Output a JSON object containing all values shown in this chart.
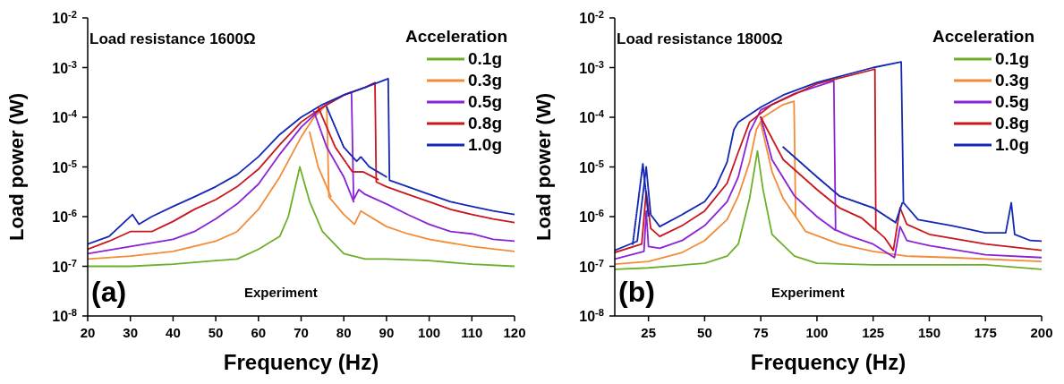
{
  "chart_data": [
    {
      "type": "line",
      "xlabel": "Frequency (Hz)",
      "ylabel": "Load power (W)",
      "legend_title": "Acceleration",
      "legend": "top right",
      "marker": "none",
      "log": "y",
      "xlim": [
        20,
        120
      ],
      "xticks": [
        20,
        30,
        40,
        50,
        60,
        70,
        80,
        90,
        100,
        110,
        120
      ],
      "ylim": [
        1e-08,
        0.01
      ],
      "yticks": [
        {
          "value": 1e-08,
          "label": "10$^{-8}$"
        },
        {
          "value": 1e-07,
          "label": "10$^{-7}$"
        },
        {
          "value": 1e-06,
          "label": "10$^{-6}$"
        },
        {
          "value": 1e-05,
          "label": "10$^{-5}$"
        },
        {
          "value": 0.0001,
          "label": "10$^{-4}$"
        },
        {
          "value": 0.001,
          "label": "10$^{-3}$"
        },
        {
          "value": 0.01,
          "label": "10$^{-2}$"
        }
      ],
      "annotations": [
        "Load resistance 1600Ω",
        "Experiment",
        "(a)"
      ],
      "series": [
        {
          "name": "0.1g",
          "color": "#6fae2b",
          "x": [
            20,
            30,
            40,
            50,
            55,
            60,
            65,
            67,
            69.7,
            72,
            75,
            80,
            85,
            90,
            100,
            110,
            120
          ],
          "values": [
            1e-07,
            1e-07,
            1.1e-07,
            1.3e-07,
            1.4e-07,
            2.2e-07,
            4e-07,
            1e-06,
            1e-05,
            2e-06,
            5e-07,
            1.8e-07,
            1.4e-07,
            1.4e-07,
            1.3e-07,
            1.1e-07,
            1e-07
          ]
        },
        {
          "name": "0.3g",
          "color": "#f28c38",
          "x": [
            20,
            30,
            40,
            50,
            55,
            60,
            65,
            70,
            73,
            76,
            76.5,
            80,
            82.5,
            84,
            90,
            95,
            100,
            110,
            120
          ],
          "values": [
            1.4e-07,
            1.6e-07,
            2e-07,
            3.2e-07,
            5e-07,
            1.4e-06,
            6.3e-06,
            4e-05,
            0.0001,
            0.00018,
            2.5e-06,
            1.1e-06,
            7e-07,
            1.3e-06,
            6.3e-07,
            4.5e-07,
            3.5e-07,
            2.5e-07,
            2e-07
          ]
        },
        {
          "name": "0.5g",
          "color": "#8a23d6",
          "x": [
            20,
            30,
            40,
            45,
            50,
            55,
            60,
            65,
            70,
            75,
            80,
            81.8,
            82.3,
            83.5,
            85,
            90,
            95,
            100,
            105,
            110,
            115,
            120
          ],
          "values": [
            1.8e-07,
            2.5e-07,
            3.5e-07,
            5e-07,
            9e-07,
            1.8e-06,
            4.5e-06,
            1.8e-05,
            6.3e-05,
            0.00016,
            0.00028,
            0.00032,
            2.2e-06,
            3.5e-06,
            2.8e-06,
            1.8e-06,
            1.1e-06,
            7e-07,
            5e-07,
            4.5e-07,
            3.5e-07,
            3.2e-07
          ]
        },
        {
          "name": "0.8g",
          "color": "#c8161d",
          "x": [
            20,
            25,
            30,
            35,
            40,
            45,
            50,
            55,
            60,
            65,
            70,
            75,
            80,
            85,
            87.3,
            87.6,
            90,
            95,
            100,
            105,
            110,
            115,
            120
          ],
          "values": [
            2.2e-07,
            3.2e-07,
            5e-07,
            5e-07,
            8e-07,
            1.4e-06,
            2.2e-06,
            4e-06,
            9e-06,
            2.8e-05,
            8e-05,
            0.00016,
            0.00028,
            0.0004,
            0.0005,
            5e-06,
            4e-06,
            2.8e-06,
            2e-06,
            1.4e-06,
            1.1e-06,
            9e-07,
            7.6e-07
          ]
        },
        {
          "name": "1.0g",
          "color": "#1428b4",
          "x": [
            20,
            25,
            30.5,
            32,
            35,
            40,
            45,
            50,
            55,
            60,
            65,
            70,
            75,
            80,
            85,
            90.4,
            90.7,
            95,
            100,
            105,
            110,
            115,
            120
          ],
          "values": [
            2.8e-07,
            4e-07,
            1.1e-06,
            7e-07,
            1e-06,
            1.6e-06,
            2.5e-06,
            4e-06,
            7e-06,
            1.6e-05,
            4.5e-05,
            0.0001,
            0.00018,
            0.00028,
            0.0004,
            0.0006,
            5.4e-06,
            4e-06,
            2.8e-06,
            2e-06,
            1.6e-06,
            1.3e-06,
            1.1e-06
          ]
        },
        {
          "color": "#f28c38",
          "line_style": "dotted",
          "x": [
            72,
            74,
            77
          ],
          "values": [
            5e-05,
            1e-05,
            2.5e-06
          ]
        },
        {
          "color": "#8a23d6",
          "line_style": "dotted",
          "x": [
            73,
            76,
            80,
            82.3
          ],
          "values": [
            0.00013,
            2.5e-05,
            6.3e-06,
            2e-06
          ]
        },
        {
          "color": "#c8161d",
          "line_style": "dotted",
          "x": [
            74,
            78,
            82,
            84.5,
            88
          ],
          "values": [
            0.00016,
            2.5e-05,
            8e-06,
            8e-06,
            5.6e-06
          ]
        },
        {
          "color": "#1428b4",
          "line_style": "dotted",
          "x": [
            76,
            80,
            83,
            84,
            86,
            90
          ],
          "values": [
            0.00016,
            2.5e-05,
            1.3e-05,
            1.6e-05,
            1e-05,
            6.3e-06
          ]
        }
      ]
    },
    {
      "type": "line",
      "xlabel": "Frequency (Hz)",
      "ylabel": "Load power (W)",
      "legend_title": "Acceleration",
      "legend": "top right",
      "marker": "none",
      "log": "y",
      "xlim": [
        10,
        200
      ],
      "xticks": [
        25,
        50,
        75,
        100,
        125,
        150,
        175,
        200
      ],
      "ylim": [
        1e-08,
        0.01
      ],
      "yticks": [
        {
          "value": 1e-08,
          "label": "10$^{-8}$"
        },
        {
          "value": 1e-07,
          "label": "10$^{-7}$"
        },
        {
          "value": 1e-06,
          "label": "10$^{-6}$"
        },
        {
          "value": 1e-05,
          "label": "10$^{-5}$"
        },
        {
          "value": 0.0001,
          "label": "10$^{-4}$"
        },
        {
          "value": 0.001,
          "label": "10$^{-3}$"
        },
        {
          "value": 0.01,
          "label": "10$^{-2}$"
        }
      ],
      "annotations": [
        "Load resistance 1800Ω",
        "Experiment",
        "(b)"
      ],
      "series": [
        {
          "name": "0.1g",
          "color": "#6fae2b",
          "x": [
            10,
            25,
            50,
            60,
            65,
            70,
            73.5,
            76,
            80,
            90,
            100,
            125,
            150,
            175,
            200
          ],
          "values": [
            8.7e-08,
            9.3e-08,
            1.15e-07,
            1.6e-07,
            2.8e-07,
            2.3e-06,
            2.1e-05,
            3.5e-06,
            4.4e-07,
            1.6e-07,
            1.15e-07,
            1.07e-07,
            1.07e-07,
            1.07e-07,
            8.7e-08
          ]
        },
        {
          "name": "0.3g",
          "color": "#f28c38",
          "x": [
            10,
            25,
            40,
            50,
            60,
            65,
            70,
            73,
            76,
            85,
            89.8,
            90.5,
            95,
            110,
            125,
            140,
            160,
            200
          ],
          "values": [
            1.1e-07,
            1.25e-07,
            1.9e-07,
            3.3e-07,
            8.7e-07,
            2.6e-06,
            1.25e-05,
            5.6e-05,
            0.0001,
            0.00018,
            0.00021,
            1e-06,
            5e-07,
            2.8e-07,
            2e-07,
            1.6e-07,
            1.5e-07,
            1.25e-07
          ]
        },
        {
          "name": "0.5g",
          "color": "#8a23d6",
          "x": [
            10,
            23,
            24,
            25,
            30,
            40,
            50,
            60,
            65,
            70,
            75,
            90,
            107.5,
            108.3,
            115,
            125,
            134.5,
            137,
            140,
            150,
            175,
            200
          ],
          "values": [
            1.4e-07,
            2e-07,
            1.3e-06,
            2.5e-07,
            2.3e-07,
            3.3e-07,
            6.6e-07,
            2e-06,
            6.3e-06,
            5e-05,
            0.00014,
            0.0003,
            0.00054,
            5.4e-07,
            4e-07,
            2.8e-07,
            1.5e-07,
            6.3e-07,
            3.3e-07,
            2.6e-07,
            1.7e-07,
            1.5e-07
          ]
        },
        {
          "name": "0.8g",
          "color": "#c8161d",
          "x": [
            10,
            22,
            24,
            26,
            30,
            40,
            50,
            60,
            65,
            70,
            80,
            100,
            125.8,
            126.2,
            130,
            134,
            137,
            140,
            150,
            175,
            200
          ],
          "values": [
            1.9e-07,
            2.8e-07,
            3.2e-06,
            5.8e-07,
            4e-07,
            6.6e-07,
            1.3e-06,
            4.7e-06,
            2e-05,
            8e-05,
            0.00018,
            0.00047,
            0.00093,
            5.4e-07,
            3.8e-07,
            2.1e-07,
            1.5e-06,
            7e-07,
            4.4e-07,
            2.8e-07,
            2.1e-07
          ]
        },
        {
          "name": "1.0g",
          "color": "#1428b4",
          "x": [
            10,
            20,
            24,
            26,
            30,
            40,
            50,
            55,
            60,
            63,
            65,
            75,
            85,
            100,
            125,
            137.5,
            138.5,
            145,
            160,
            175,
            184,
            186.5,
            188,
            195,
            200
          ],
          "values": [
            2.1e-07,
            3.2e-07,
            1e-05,
            1.1e-06,
            6.3e-07,
            1.1e-06,
            2e-06,
            4e-06,
            1.25e-05,
            5.6e-05,
            8e-05,
            0.00016,
            0.00028,
            0.0005,
            0.001,
            0.0013,
            1.9e-06,
            8.7e-07,
            6.6e-07,
            4.7e-07,
            4.7e-07,
            1.9e-06,
            4.4e-07,
            3.3e-07,
            3.2e-07
          ]
        },
        {
          "color": "#f28c38",
          "line_style": "dotted",
          "x": [
            75,
            80,
            85,
            90.5
          ],
          "values": [
            7.6e-05,
            8e-06,
            2.3e-06,
            1e-06
          ]
        },
        {
          "color": "#8a23d6",
          "line_style": "dotted",
          "x": [
            75,
            80,
            90,
            100,
            108
          ],
          "values": [
            0.0001,
            1.4e-05,
            2.6e-06,
            1e-06,
            5.4e-07
          ]
        },
        {
          "color": "#c8161d",
          "line_style": "dotted",
          "x": [
            75,
            85,
            100,
            110,
            120,
            126
          ],
          "values": [
            0.0001,
            1.4e-05,
            3.5e-06,
            1.5e-06,
            9.3e-07,
            5.4e-07
          ]
        },
        {
          "color": "#1428b4",
          "line_style": "dotted",
          "x": [
            18,
            22.5,
            25,
            76,
            85,
            100,
            110,
            125,
            135,
            138
          ],
          "values": [
            2.8e-07,
            1.15e-05,
            1e-06,
            null,
            2.5e-05,
            6.3e-06,
            2.6e-06,
            1.5e-06,
            7.6e-07,
            1.9e-06
          ]
        }
      ]
    }
  ]
}
